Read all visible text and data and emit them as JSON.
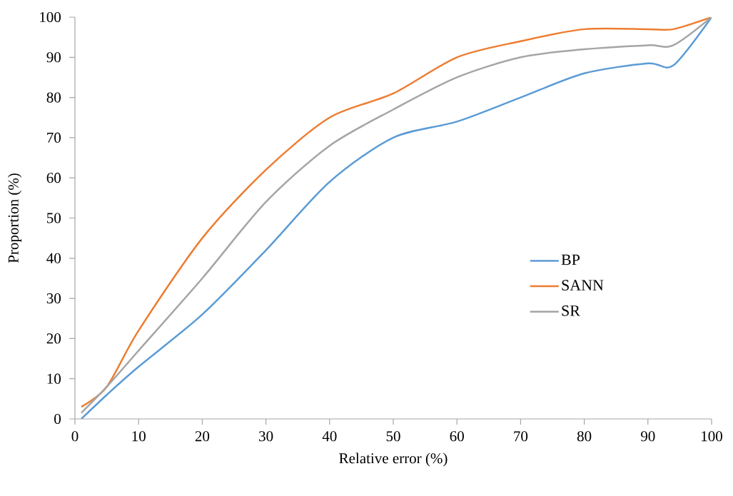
{
  "chart_data": {
    "type": "line",
    "xlabel": "Relative error (%)",
    "ylabel": "Proportion (%)",
    "x": [
      1,
      5,
      10,
      20,
      30,
      40,
      50,
      60,
      70,
      80,
      90,
      94,
      100
    ],
    "series": [
      {
        "name": "BP",
        "color": "#5b9bd5",
        "values": [
          0,
          6,
          13,
          26,
          42,
          59,
          70,
          74,
          80,
          86,
          88.5,
          88,
          100
        ]
      },
      {
        "name": "SANN",
        "color": "#ed7d31",
        "values": [
          3,
          8,
          22,
          45,
          62,
          75,
          81,
          90,
          94,
          97,
          97,
          97,
          100
        ]
      },
      {
        "name": "SR",
        "color": "#a5a5a5",
        "values": [
          1.5,
          8,
          17,
          35,
          54,
          68,
          77,
          85,
          90,
          92,
          93,
          93,
          100
        ]
      }
    ],
    "xlim": [
      0,
      100
    ],
    "xticks": [
      0,
      10,
      20,
      30,
      40,
      50,
      60,
      70,
      80,
      90,
      100
    ],
    "ylim": [
      0,
      100
    ],
    "yticks": [
      0,
      10,
      20,
      30,
      40,
      50,
      60,
      70,
      80,
      90,
      100
    ],
    "legend": "right",
    "marker": "none",
    "line_style": "solid"
  }
}
